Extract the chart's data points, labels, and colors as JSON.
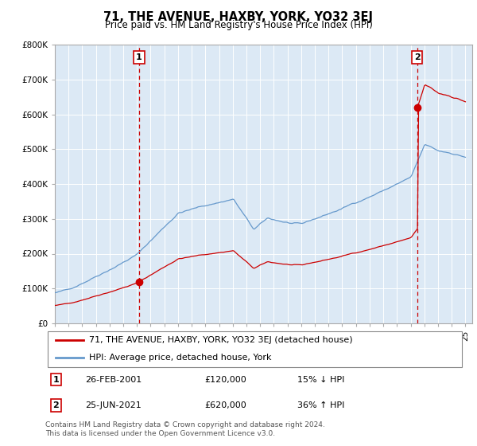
{
  "title": "71, THE AVENUE, HAXBY, YORK, YO32 3EJ",
  "subtitle": "Price paid vs. HM Land Registry's House Price Index (HPI)",
  "sale1_date": 2001.15,
  "sale1_price": 120000,
  "sale1_label": "1",
  "sale1_text": "26-FEB-2001",
  "sale1_price_text": "£120,000",
  "sale1_hpi_text": "15% ↓ HPI",
  "sale2_date": 2021.48,
  "sale2_price": 620000,
  "sale2_label": "2",
  "sale2_text": "25-JUN-2021",
  "sale2_price_text": "£620,000",
  "sale2_hpi_text": "36% ↑ HPI",
  "legend_property": "71, THE AVENUE, HAXBY, YORK, YO32 3EJ (detached house)",
  "legend_hpi": "HPI: Average price, detached house, York",
  "footer": "Contains HM Land Registry data © Crown copyright and database right 2024.\nThis data is licensed under the Open Government Licence v3.0.",
  "ylabel_ticks": [
    "£0",
    "£100K",
    "£200K",
    "£300K",
    "£400K",
    "£500K",
    "£600K",
    "£700K",
    "£800K"
  ],
  "ylabel_values": [
    0,
    100000,
    200000,
    300000,
    400000,
    500000,
    600000,
    700000,
    800000
  ],
  "ylim": [
    0,
    800000
  ],
  "xlim_start": 1995.0,
  "xlim_end": 2025.5,
  "chart_bg_color": "#dce9f5",
  "background_color": "#ffffff",
  "grid_color": "#ffffff",
  "line_property_color": "#cc0000",
  "line_hpi_color": "#6699cc",
  "dashed_line_color": "#cc0000",
  "annotation_box_color": "#cc0000"
}
